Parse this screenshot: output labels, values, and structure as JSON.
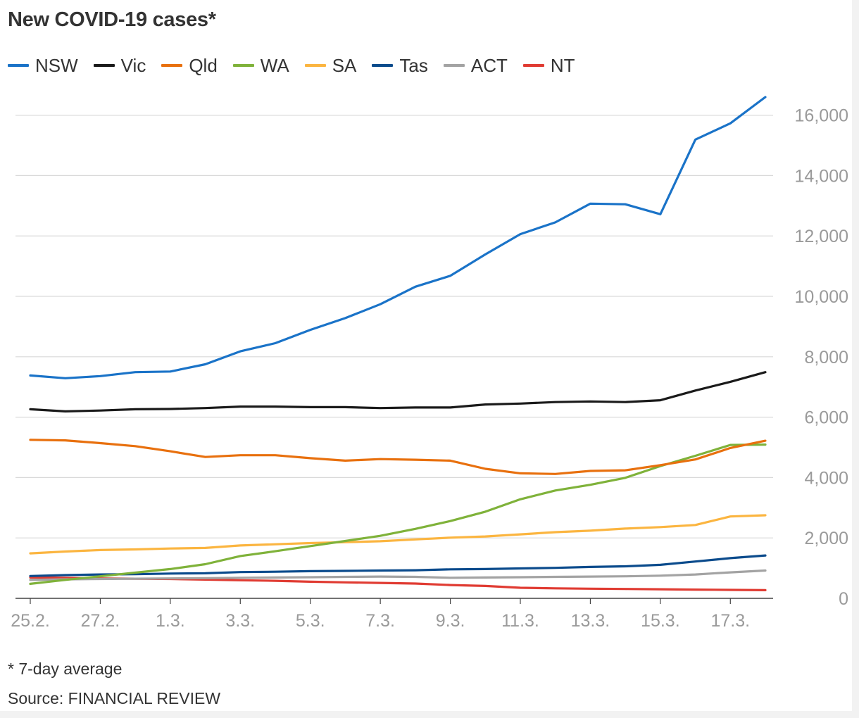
{
  "page": {
    "title": "New COVID-19 cases*",
    "footnote": "* 7-day average",
    "source": "Source: FINANCIAL REVIEW"
  },
  "chart_data": {
    "type": "line",
    "title": "New COVID-19 cases*",
    "x": [
      "25.2.",
      "26.2.",
      "27.2.",
      "28.2.",
      "1.3.",
      "2.3.",
      "3.3.",
      "4.3.",
      "5.3.",
      "6.3.",
      "7.3.",
      "8.3.",
      "9.3.",
      "10.3.",
      "11.3.",
      "12.3.",
      "13.3.",
      "14.3.",
      "15.3.",
      "16.3.",
      "17.3.",
      "18.3."
    ],
    "x_tick_labels": [
      "25.2.",
      "27.2.",
      "1.3.",
      "3.3.",
      "5.3.",
      "7.3.",
      "9.3.",
      "11.3.",
      "13.3.",
      "15.3.",
      "17.3."
    ],
    "y_ticks": [
      "0",
      "2,000",
      "4,000",
      "6,000",
      "8,000",
      "10,000",
      "12,000",
      "14,000",
      "16,000"
    ],
    "ylim": [
      0,
      16800
    ],
    "y_axis_side": "right",
    "grid": "horizontal",
    "legend_position": "top-left",
    "series": [
      {
        "name": "NSW",
        "color": "#1a73c8",
        "values": [
          7380,
          7290,
          7360,
          7490,
          7510,
          7750,
          8180,
          8450,
          8890,
          9280,
          9740,
          10320,
          10680,
          11390,
          12060,
          12450,
          13070,
          13050,
          12720,
          15190,
          15730,
          16600
        ]
      },
      {
        "name": "Vic",
        "color": "#1a1a1a",
        "values": [
          6260,
          6190,
          6220,
          6260,
          6270,
          6300,
          6350,
          6350,
          6330,
          6330,
          6300,
          6320,
          6320,
          6420,
          6450,
          6500,
          6520,
          6500,
          6560,
          6880,
          7170,
          7490
        ]
      },
      {
        "name": "Qld",
        "color": "#e8700e",
        "values": [
          5250,
          5230,
          5140,
          5040,
          4870,
          4680,
          4740,
          4740,
          4640,
          4560,
          4610,
          4590,
          4560,
          4290,
          4140,
          4120,
          4220,
          4240,
          4410,
          4600,
          4980,
          5220
        ]
      },
      {
        "name": "WA",
        "color": "#7fb23a",
        "values": [
          480,
          610,
          730,
          850,
          970,
          1130,
          1400,
          1560,
          1730,
          1900,
          2070,
          2300,
          2560,
          2870,
          3280,
          3570,
          3760,
          3990,
          4380,
          4720,
          5080,
          5090
        ]
      },
      {
        "name": "SA",
        "color": "#fbb540",
        "values": [
          1490,
          1550,
          1600,
          1620,
          1650,
          1670,
          1750,
          1790,
          1830,
          1860,
          1890,
          1950,
          2010,
          2050,
          2120,
          2190,
          2240,
          2310,
          2360,
          2430,
          2710,
          2750
        ]
      },
      {
        "name": "Tas",
        "color": "#0b4b8c",
        "values": [
          740,
          770,
          790,
          800,
          820,
          830,
          870,
          880,
          900,
          910,
          920,
          930,
          960,
          970,
          990,
          1010,
          1040,
          1060,
          1110,
          1220,
          1330,
          1420
        ]
      },
      {
        "name": "ACT",
        "color": "#a3a3a3",
        "values": [
          610,
          630,
          640,
          650,
          660,
          670,
          680,
          690,
          700,
          710,
          720,
          710,
          680,
          690,
          700,
          710,
          720,
          730,
          750,
          790,
          860,
          920
        ]
      },
      {
        "name": "NT",
        "color": "#e03b32",
        "values": [
          690,
          680,
          660,
          650,
          640,
          620,
          600,
          580,
          550,
          530,
          510,
          490,
          440,
          410,
          350,
          330,
          320,
          310,
          300,
          290,
          280,
          270
        ]
      }
    ]
  }
}
